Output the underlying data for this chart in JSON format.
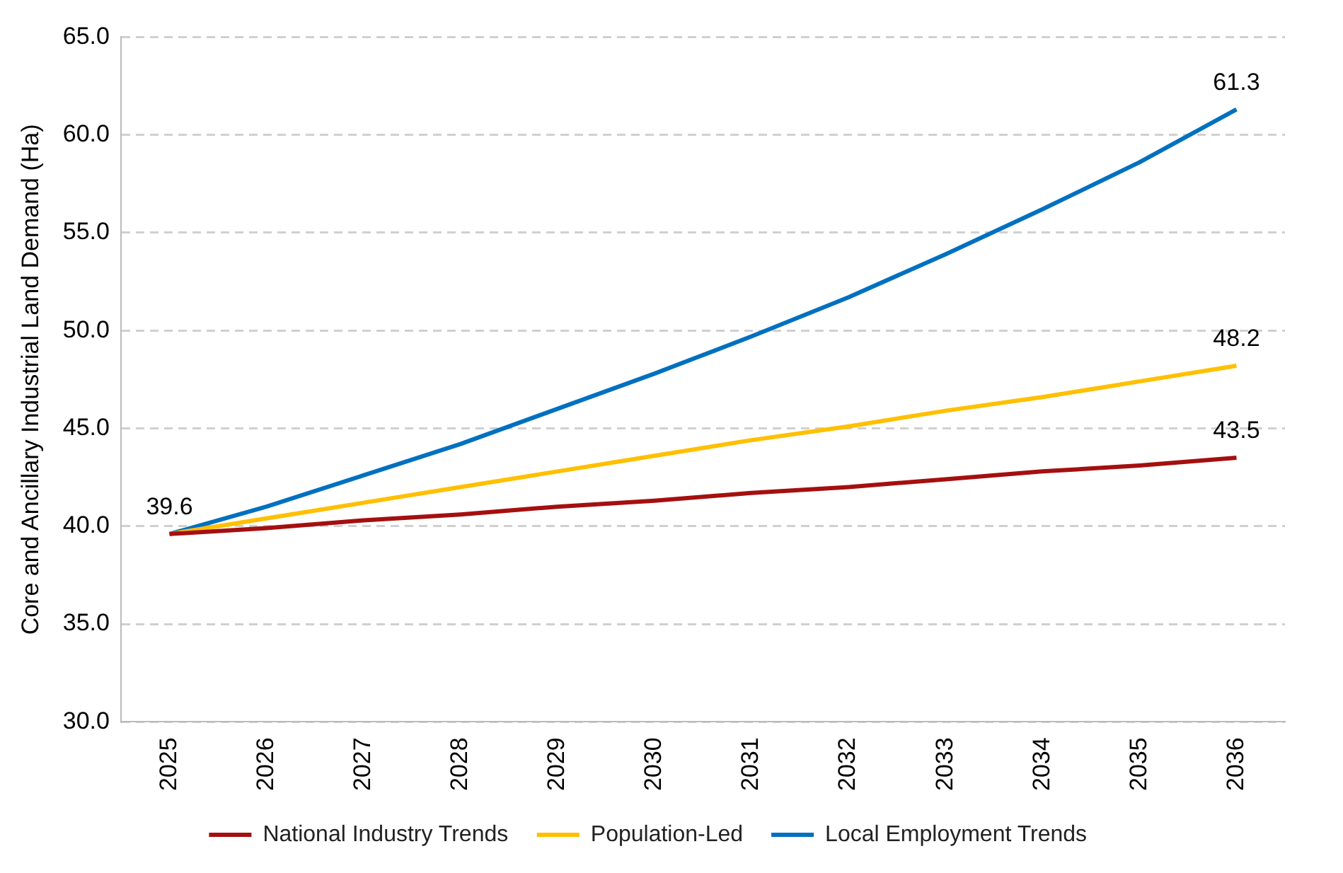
{
  "chart_data": {
    "type": "line",
    "ylabel": "Core and Ancillary Industrial Land Demand (Ha)",
    "categories": [
      "2025",
      "2026",
      "2027",
      "2028",
      "2029",
      "2030",
      "2031",
      "2032",
      "2033",
      "2034",
      "2035",
      "2036"
    ],
    "ylim": [
      30,
      65
    ],
    "yticks": [
      {
        "value": 30,
        "label": "30.0"
      },
      {
        "value": 35,
        "label": "35.0"
      },
      {
        "value": 40,
        "label": "40.0"
      },
      {
        "value": 45,
        "label": "45.0"
      },
      {
        "value": 50,
        "label": "50.0"
      },
      {
        "value": 55,
        "label": "55.0"
      },
      {
        "value": 60,
        "label": "60.0"
      },
      {
        "value": 65,
        "label": "65.0"
      }
    ],
    "grid": "y",
    "legend": "bottom",
    "marker": "none",
    "line_style": "solid",
    "series": [
      {
        "name": "National Industry Trends",
        "color": "#a50f0f",
        "values": [
          39.6,
          39.9,
          40.3,
          40.6,
          41.0,
          41.3,
          41.7,
          42.0,
          42.4,
          42.8,
          43.1,
          43.5
        ],
        "value_labels": [
          null,
          null,
          null,
          null,
          null,
          null,
          null,
          null,
          null,
          null,
          null,
          "43.5"
        ]
      },
      {
        "name": "Population-Led",
        "color": "#ffc000",
        "values": [
          39.6,
          40.4,
          41.2,
          42.0,
          42.8,
          43.6,
          44.4,
          45.1,
          45.9,
          46.6,
          47.4,
          48.2
        ],
        "value_labels": [
          null,
          null,
          null,
          null,
          null,
          null,
          null,
          null,
          null,
          null,
          null,
          "48.2"
        ]
      },
      {
        "name": "Local Employment Trends",
        "color": "#0070c0",
        "values": [
          39.6,
          41.0,
          42.6,
          44.2,
          46.0,
          47.8,
          49.7,
          51.7,
          53.9,
          56.2,
          58.6,
          61.3
        ],
        "value_labels": [
          "39.6",
          null,
          null,
          null,
          null,
          null,
          null,
          null,
          null,
          null,
          null,
          "61.3"
        ]
      }
    ]
  }
}
